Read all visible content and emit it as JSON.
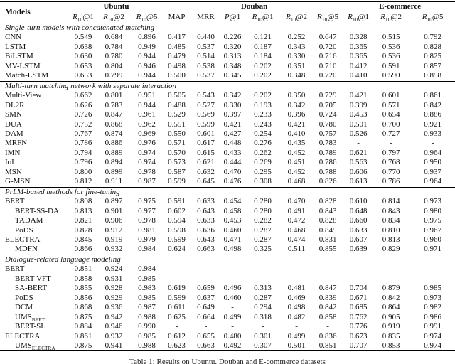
{
  "table": {
    "caption": "Table 1: Results on Ubuntu, Douban and E-commerce datasets",
    "header": {
      "models_label": "Models",
      "groups": [
        {
          "label": "Ubuntu",
          "span": 3
        },
        {
          "label": "Douban",
          "span": 6
        },
        {
          "label": "E-commerce",
          "span": 3
        }
      ],
      "metrics": [
        {
          "pre": "R",
          "sub": "10",
          "post": "@1"
        },
        {
          "pre": "R",
          "sub": "10",
          "post": "@2"
        },
        {
          "pre": "R",
          "sub": "10",
          "post": "@5"
        },
        {
          "pre": "MAP",
          "sub": "",
          "post": ""
        },
        {
          "pre": "MRR",
          "sub": "",
          "post": ""
        },
        {
          "pre": "P",
          "sub": "",
          "post": "@1"
        },
        {
          "pre": "R",
          "sub": "10",
          "post": "@1"
        },
        {
          "pre": "R",
          "sub": "10",
          "post": "@2"
        },
        {
          "pre": "R",
          "sub": "10",
          "post": "@5"
        },
        {
          "pre": "R",
          "sub": "10",
          "post": "@1"
        },
        {
          "pre": "R",
          "sub": "10",
          "post": "@2"
        },
        {
          "pre": "R",
          "sub": "10",
          "post": "@5"
        }
      ]
    },
    "sections": [
      {
        "title": "Single-turn models with concatenated matching",
        "rows": [
          {
            "name": "CNN",
            "indent": false,
            "values": [
              "0.549",
              "0.684",
              "0.896",
              "0.417",
              "0.440",
              "0.226",
              "0.121",
              "0.252",
              "0.647",
              "0.328",
              "0.515",
              "0.792"
            ]
          },
          {
            "name": "LSTM",
            "indent": false,
            "values": [
              "0.638",
              "0.784",
              "0.949",
              "0.485",
              "0.537",
              "0.320",
              "0.187",
              "0.343",
              "0.720",
              "0.365",
              "0.536",
              "0.828"
            ]
          },
          {
            "name": "BiLSTM",
            "indent": false,
            "values": [
              "0.630",
              "0.780",
              "0.944",
              "0.479",
              "0.514",
              "0.313",
              "0.184",
              "0.330",
              "0.716",
              "0.365",
              "0.536",
              "0.825"
            ]
          },
          {
            "name": "MV-LSTM",
            "indent": false,
            "values": [
              "0.653",
              "0.804",
              "0.946",
              "0.498",
              "0.538",
              "0.348",
              "0.202",
              "0.351",
              "0.710",
              "0.412",
              "0.591",
              "0.857"
            ]
          },
          {
            "name": "Match-LSTM",
            "indent": false,
            "values": [
              "0.653",
              "0.799",
              "0.944",
              "0.500",
              "0.537",
              "0.345",
              "0.202",
              "0.348",
              "0.720",
              "0.410",
              "0.590",
              "0.858"
            ]
          }
        ]
      },
      {
        "title": "Multi-turn matching network with separate interaction",
        "rows": [
          {
            "name": "Multi-View",
            "indent": false,
            "values": [
              "0.662",
              "0.801",
              "0.951",
              "0.505",
              "0.543",
              "0.342",
              "0.202",
              "0.350",
              "0.729",
              "0.421",
              "0.601",
              "0.861"
            ]
          },
          {
            "name": "DL2R",
            "indent": false,
            "values": [
              "0.626",
              "0.783",
              "0.944",
              "0.488",
              "0.527",
              "0.330",
              "0.193",
              "0.342",
              "0.705",
              "0.399",
              "0.571",
              "0.842"
            ]
          },
          {
            "name": "SMN",
            "indent": false,
            "values": [
              "0.726",
              "0.847",
              "0.961",
              "0.529",
              "0.569",
              "0.397",
              "0.233",
              "0.396",
              "0.724",
              "0.453",
              "0.654",
              "0.886"
            ]
          },
          {
            "name": "DUA",
            "indent": false,
            "values": [
              "0.752",
              "0.868",
              "0.962",
              "0.551",
              "0.599",
              "0.421",
              "0.243",
              "0.421",
              "0.780",
              "0.501",
              "0.700",
              "0.921"
            ]
          },
          {
            "name": "DAM",
            "indent": false,
            "values": [
              "0.767",
              "0.874",
              "0.969",
              "0.550",
              "0.601",
              "0.427",
              "0.254",
              "0.410",
              "0.757",
              "0.526",
              "0.727",
              "0.933"
            ]
          },
          {
            "name": "MRFN",
            "indent": false,
            "values": [
              "0.786",
              "0.886",
              "0.976",
              "0.571",
              "0.617",
              "0.448",
              "0.276",
              "0.435",
              "0.783",
              "-",
              "-",
              "-"
            ]
          },
          {
            "name": "IMN",
            "indent": false,
            "values": [
              "0.794",
              "0.889",
              "0.974",
              "0.570",
              "0.615",
              "0.433",
              "0.262",
              "0.452",
              "0.789",
              "0.621",
              "0.797",
              "0.964"
            ]
          },
          {
            "name": "IoI",
            "indent": false,
            "values": [
              "0.796",
              "0.894",
              "0.974",
              "0.573",
              "0.621",
              "0.444",
              "0.269",
              "0.451",
              "0.786",
              "0.563",
              "0.768",
              "0.950"
            ]
          },
          {
            "name": "MSN",
            "indent": false,
            "values": [
              "0.800",
              "0.899",
              "0.978",
              "0.587",
              "0.632",
              "0.470",
              "0.295",
              "0.452",
              "0.788",
              "0.606",
              "0.770",
              "0.937"
            ]
          },
          {
            "name": "G-MSN",
            "indent": false,
            "values": [
              "0.812",
              "0.911",
              "0.987",
              "0.599",
              "0.645",
              "0.476",
              "0.308",
              "0.468",
              "0.826",
              "0.613",
              "0.786",
              "0.964"
            ]
          }
        ]
      },
      {
        "title": "PrLM-based methods for fine-tuning",
        "rows": [
          {
            "name": "BERT",
            "indent": false,
            "values": [
              "0.808",
              "0.897",
              "0.975",
              "0.591",
              "0.633",
              "0.454",
              "0.280",
              "0.470",
              "0.828",
              "0.610",
              "0.814",
              "0.973"
            ]
          },
          {
            "name": "BERT-SS-DA",
            "indent": true,
            "values": [
              "0.813",
              "0.901",
              "0.977",
              "0.602",
              "0.643",
              "0.458",
              "0.280",
              "0.491",
              "0.843",
              "0.648",
              "0.843",
              "0.980"
            ]
          },
          {
            "name": "TADAM",
            "indent": true,
            "values": [
              "0.821",
              "0.906",
              "0.978",
              "0.594",
              "0.633",
              "0.453",
              "0.282",
              "0.472",
              "0.828",
              "0.660",
              "0.834",
              "0.975"
            ]
          },
          {
            "name": "PoDS",
            "indent": true,
            "values": [
              "0.828",
              "0.912",
              "0.981",
              "0.598",
              "0.636",
              "0.460",
              "0.287",
              "0.468",
              "0.845",
              "0.633",
              "0.810",
              "0.967"
            ]
          },
          {
            "name": "ELECTRA",
            "indent": false,
            "values": [
              "0.845",
              "0.919",
              "0.979",
              "0.599",
              "0.643",
              "0.471",
              "0.287",
              "0.474",
              "0.831",
              "0.607",
              "0.813",
              "0.960"
            ]
          },
          {
            "name": "MDFN",
            "indent": true,
            "values": [
              "0.866",
              "0.932",
              "0.984",
              "0.624",
              "0.663",
              "0.498",
              "0.325",
              "0.511",
              "0.855",
              "0.639",
              "0.829",
              "0.971"
            ]
          }
        ]
      },
      {
        "title": "Dialogue-related language modeling",
        "rows": [
          {
            "name": "BERT",
            "indent": false,
            "values": [
              "0.851",
              "0.924",
              "0.984",
              "-",
              "-",
              "-",
              "-",
              "-",
              "-",
              "-",
              "-",
              "-"
            ]
          },
          {
            "name": "BERT-VFT",
            "indent": true,
            "values": [
              "0.858",
              "0.931",
              "0.985",
              "-",
              "-",
              "-",
              "-",
              "-",
              "-",
              "-",
              "-",
              "-"
            ]
          },
          {
            "name": "SA-BERT",
            "indent": true,
            "values": [
              "0.855",
              "0.928",
              "0.983",
              "0.619",
              "0.659",
              "0.496",
              "0.313",
              "0.481",
              "0.847",
              "0.704",
              "0.879",
              "0.985"
            ]
          },
          {
            "name": "PoDS",
            "indent": true,
            "values": [
              "0.856",
              "0.929",
              "0.985",
              "0.599",
              "0.637",
              "0.460",
              "0.287",
              "0.469",
              "0.839",
              "0.671",
              "0.842",
              "0.973"
            ]
          },
          {
            "name": "DCM",
            "indent": true,
            "values": [
              "0.868",
              "0.936",
              "0.987",
              "0.611",
              "0.649",
              "-",
              "0.294",
              "0.498",
              "0.842",
              "0.685",
              "0.864",
              "0.982"
            ]
          },
          {
            "name": "UMS",
            "name_sub": "BERT",
            "indent": true,
            "values": [
              "0.875",
              "0.942",
              "0.988",
              "0.625",
              "0.664",
              "0.499",
              "0.318",
              "0.482",
              "0.858",
              "0.762",
              "0.905",
              "0.986"
            ]
          },
          {
            "name": "BERT-SL",
            "indent": true,
            "values": [
              "0.884",
              "0.946",
              "0.990",
              "-",
              "-",
              "-",
              "-",
              "-",
              "-",
              "0.776",
              "0.919",
              "0.991"
            ]
          },
          {
            "name": "ELECTRA",
            "indent": false,
            "values": [
              "0.861",
              "0.932",
              "0.985",
              "0.612",
              "0.655",
              "0.480",
              "0.301",
              "0.499",
              "0.836",
              "0.673",
              "0.835",
              "0.974"
            ]
          },
          {
            "name": "UMS",
            "name_sub": "ELECTRA",
            "indent": true,
            "values": [
              "0.875",
              "0.941",
              "0.988",
              "0.623",
              "0.663",
              "0.492",
              "0.307",
              "0.501",
              "0.851",
              "0.707",
              "0.853",
              "0.974"
            ]
          }
        ]
      }
    ]
  }
}
